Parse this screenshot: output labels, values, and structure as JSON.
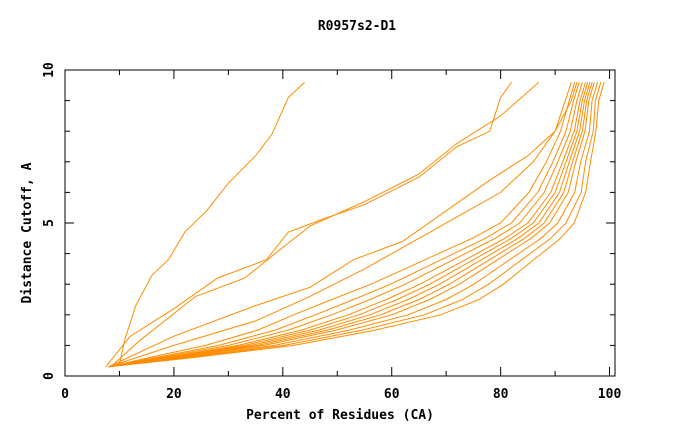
{
  "chart_data": {
    "type": "line",
    "title": "R0957s2-D1",
    "xlabel": "Percent of Residues (CA)",
    "ylabel": "Distance Cutoff, A",
    "xlim": [
      0,
      101
    ],
    "ylim": [
      0,
      10
    ],
    "xticks": [
      0,
      20,
      40,
      60,
      80,
      100
    ],
    "yticks": [
      0,
      5,
      10
    ],
    "grid": false,
    "line_color": "#ff8c00",
    "series": [
      {
        "points": [
          [
            10,
            0.4
          ],
          [
            11,
            1.2
          ],
          [
            13,
            2.3
          ],
          [
            16,
            3.3
          ],
          [
            19,
            3.8
          ],
          [
            22,
            4.7
          ],
          [
            26,
            5.4
          ],
          [
            30,
            6.3
          ],
          [
            35,
            7.2
          ],
          [
            38,
            7.9
          ],
          [
            41,
            9.1
          ],
          [
            44,
            9.6
          ]
        ]
      },
      {
        "points": [
          [
            7.5,
            0.3
          ],
          [
            12,
            1.3
          ],
          [
            20,
            2.2
          ],
          [
            28,
            3.2
          ],
          [
            37,
            3.8
          ],
          [
            41,
            4.7
          ],
          [
            47,
            5.1
          ],
          [
            55,
            5.6
          ],
          [
            65,
            6.5
          ],
          [
            72,
            7.5
          ],
          [
            78,
            8.0
          ],
          [
            80,
            9.1
          ],
          [
            82,
            9.6
          ]
        ]
      },
      {
        "points": [
          [
            9,
            0.4
          ],
          [
            14,
            1.2
          ],
          [
            24,
            2.6
          ],
          [
            33,
            3.2
          ],
          [
            40,
            4.2
          ],
          [
            45,
            4.9
          ],
          [
            55,
            5.7
          ],
          [
            65,
            6.6
          ],
          [
            72,
            7.6
          ],
          [
            80,
            8.5
          ],
          [
            87,
            9.6
          ]
        ]
      },
      {
        "points": [
          [
            8,
            0.3
          ],
          [
            20,
            1.3
          ],
          [
            35,
            2.3
          ],
          [
            45,
            2.9
          ],
          [
            53,
            3.8
          ],
          [
            62,
            4.4
          ],
          [
            70,
            5.4
          ],
          [
            78,
            6.4
          ],
          [
            85,
            7.2
          ],
          [
            90,
            8.0
          ],
          [
            93,
            9.0
          ],
          [
            94,
            9.6
          ]
        ]
      },
      {
        "points": [
          [
            8,
            0.3
          ],
          [
            20,
            1.0
          ],
          [
            35,
            1.8
          ],
          [
            45,
            2.6
          ],
          [
            55,
            3.5
          ],
          [
            65,
            4.5
          ],
          [
            73,
            5.3
          ],
          [
            80,
            6.0
          ],
          [
            86,
            7.0
          ],
          [
            90,
            8.0
          ],
          [
            93,
            9.6
          ]
        ]
      },
      {
        "points": [
          [
            8,
            0.3
          ],
          [
            15.4,
            0.6
          ],
          [
            25.8,
            1.0
          ],
          [
            35.4,
            1.5
          ],
          [
            42,
            2.0
          ],
          [
            49,
            2.5
          ],
          [
            56.2,
            3.0
          ],
          [
            62.4,
            3.5
          ],
          [
            68.6,
            4.0
          ],
          [
            74.8,
            4.5
          ],
          [
            80,
            5.0
          ],
          [
            85.2,
            6.0
          ],
          [
            88.4,
            7.0
          ],
          [
            91,
            8.0
          ],
          [
            92.6,
            9.0
          ],
          [
            93.6,
            9.6
          ]
        ]
      },
      {
        "points": [
          [
            8,
            0.3
          ],
          [
            16.6,
            0.6
          ],
          [
            28.2,
            1.0
          ],
          [
            38.6,
            1.5
          ],
          [
            46,
            2.0
          ],
          [
            53,
            2.5
          ],
          [
            59.8,
            3.0
          ],
          [
            65.6,
            3.5
          ],
          [
            71.4,
            4.0
          ],
          [
            77.2,
            4.5
          ],
          [
            82,
            5.0
          ],
          [
            86.8,
            6.0
          ],
          [
            89.6,
            7.0
          ],
          [
            92,
            8.0
          ],
          [
            93.4,
            9.0
          ],
          [
            94.4,
            9.6
          ]
        ]
      },
      {
        "points": [
          [
            8,
            0.3
          ],
          [
            17.5,
            0.6
          ],
          [
            30,
            1.0
          ],
          [
            41,
            1.5
          ],
          [
            49,
            2.0
          ],
          [
            56,
            2.5
          ],
          [
            62.5,
            3.0
          ],
          [
            68,
            3.5
          ],
          [
            73.5,
            4.0
          ],
          [
            79,
            4.5
          ],
          [
            83.5,
            5.0
          ],
          [
            88,
            6.0
          ],
          [
            90.5,
            7.0
          ],
          [
            92.8,
            8.0
          ],
          [
            94,
            9.0
          ],
          [
            95,
            9.6
          ]
        ]
      },
      {
        "points": [
          [
            8,
            0.3
          ],
          [
            18.4,
            0.6
          ],
          [
            31.8,
            1.0
          ],
          [
            43.4,
            1.5
          ],
          [
            52,
            2.0
          ],
          [
            59,
            2.5
          ],
          [
            65.2,
            3.0
          ],
          [
            70.4,
            3.5
          ],
          [
            75.6,
            4.0
          ],
          [
            80.8,
            4.5
          ],
          [
            85,
            5.0
          ],
          [
            89.2,
            6.0
          ],
          [
            91.4,
            7.0
          ],
          [
            93.5,
            8.0
          ],
          [
            94.6,
            9.0
          ],
          [
            95.6,
            9.6
          ]
        ]
      },
      {
        "points": [
          [
            8,
            0.3
          ],
          [
            19,
            0.6
          ],
          [
            33,
            1.0
          ],
          [
            45,
            1.5
          ],
          [
            54,
            2.0
          ],
          [
            61,
            2.5
          ],
          [
            67,
            3.0
          ],
          [
            72,
            3.5
          ],
          [
            77,
            4.0
          ],
          [
            82,
            4.5
          ],
          [
            86,
            5.0
          ],
          [
            90,
            6.0
          ],
          [
            92,
            7.0
          ],
          [
            94,
            8.0
          ],
          [
            95,
            9.0
          ],
          [
            96,
            9.6
          ]
        ]
      },
      {
        "points": [
          [
            8,
            0.3
          ],
          [
            19.6,
            0.6
          ],
          [
            34.2,
            1.0
          ],
          [
            46.6,
            1.5
          ],
          [
            56,
            2.0
          ],
          [
            63,
            2.5
          ],
          [
            68.8,
            3.0
          ],
          [
            73.6,
            3.5
          ],
          [
            78.4,
            4.0
          ],
          [
            83.2,
            4.5
          ],
          [
            87,
            5.0
          ],
          [
            90.8,
            6.0
          ],
          [
            92.6,
            7.0
          ],
          [
            94.5,
            8.0
          ],
          [
            95.4,
            9.0
          ],
          [
            96.4,
            9.6
          ]
        ]
      },
      {
        "points": [
          [
            8,
            0.3
          ],
          [
            20.2,
            0.6
          ],
          [
            35.4,
            1.0
          ],
          [
            48.2,
            1.5
          ],
          [
            58,
            2.0
          ],
          [
            65,
            2.5
          ],
          [
            70.6,
            3.0
          ],
          [
            75.2,
            3.5
          ],
          [
            79.8,
            4.0
          ],
          [
            84.4,
            4.5
          ],
          [
            88,
            5.0
          ],
          [
            91.6,
            6.0
          ],
          [
            93.2,
            7.0
          ],
          [
            95,
            8.0
          ],
          [
            95.8,
            9.0
          ],
          [
            96.8,
            9.6
          ]
        ]
      },
      {
        "points": [
          [
            8,
            0.3
          ],
          [
            20.8,
            0.6
          ],
          [
            36.6,
            1.0
          ],
          [
            49.8,
            1.5
          ],
          [
            60,
            2.0
          ],
          [
            67,
            2.5
          ],
          [
            72.4,
            3.0
          ],
          [
            76.8,
            3.5
          ],
          [
            81.2,
            4.0
          ],
          [
            85.6,
            4.5
          ],
          [
            89,
            5.0
          ],
          [
            92.4,
            6.0
          ],
          [
            93.8,
            7.0
          ],
          [
            95.5,
            8.0
          ],
          [
            96.2,
            9.0
          ],
          [
            97.2,
            9.6
          ]
        ]
      },
      {
        "points": [
          [
            8,
            0.3
          ],
          [
            21.7,
            0.6
          ],
          [
            38.4,
            1.0
          ],
          [
            52.2,
            1.5
          ],
          [
            63,
            2.0
          ],
          [
            70,
            2.5
          ],
          [
            75.1,
            3.0
          ],
          [
            79.2,
            3.5
          ],
          [
            83.3,
            4.0
          ],
          [
            87.4,
            4.5
          ],
          [
            90.5,
            5.0
          ],
          [
            93.6,
            6.0
          ],
          [
            94.7,
            7.0
          ],
          [
            96.3,
            8.0
          ],
          [
            96.8,
            9.0
          ],
          [
            97.8,
            9.6
          ]
        ]
      },
      {
        "points": [
          [
            8,
            0.3
          ],
          [
            22.6,
            0.6
          ],
          [
            40.2,
            1.0
          ],
          [
            54.6,
            1.5
          ],
          [
            66,
            2.0
          ],
          [
            73,
            2.5
          ],
          [
            77.8,
            3.0
          ],
          [
            81.6,
            3.5
          ],
          [
            85.4,
            4.0
          ],
          [
            89.2,
            4.5
          ],
          [
            92,
            5.0
          ],
          [
            94.8,
            6.0
          ],
          [
            95.6,
            7.0
          ],
          [
            97,
            8.0
          ],
          [
            97.4,
            9.0
          ],
          [
            98.4,
            9.6
          ]
        ]
      },
      {
        "points": [
          [
            8,
            0.3
          ],
          [
            23.5,
            0.6
          ],
          [
            42,
            1.0
          ],
          [
            57,
            1.5
          ],
          [
            69,
            2.0
          ],
          [
            76,
            2.5
          ],
          [
            80.5,
            3.0
          ],
          [
            84,
            3.5
          ],
          [
            87.5,
            4.0
          ],
          [
            91,
            4.5
          ],
          [
            93.5,
            5.0
          ],
          [
            95.6,
            6.0
          ],
          [
            96.5,
            7.0
          ],
          [
            97.5,
            8.0
          ],
          [
            98,
            9.0
          ],
          [
            99,
            9.6
          ]
        ]
      }
    ]
  }
}
